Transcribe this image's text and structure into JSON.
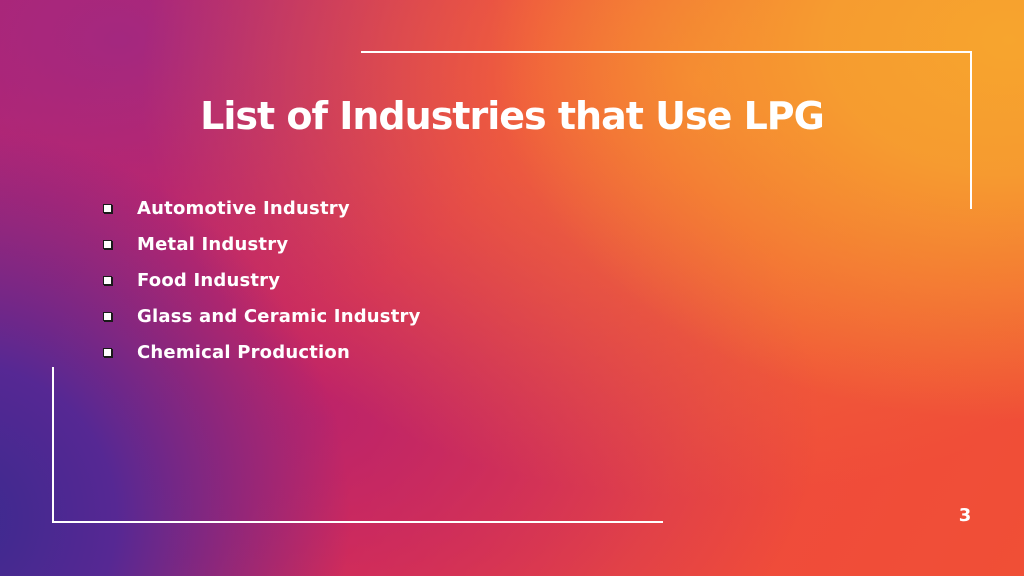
{
  "slide": {
    "title": "List of Industries that Use LPG",
    "items": [
      {
        "label": "Automotive Industry"
      },
      {
        "label": "Metal Industry"
      },
      {
        "label": "Food Industry"
      },
      {
        "label": "Glass and Ceramic Industry"
      },
      {
        "label": "Chemical Production"
      }
    ],
    "page_number": "3",
    "bullet_icon": "hollow-square-icon"
  },
  "colors": {
    "text": "#ffffff",
    "gradient_top_right": "#f7a52e",
    "gradient_center": "#e8294e",
    "gradient_bottom_left": "#3a2a8e",
    "frame_lines": "#ffffff"
  }
}
